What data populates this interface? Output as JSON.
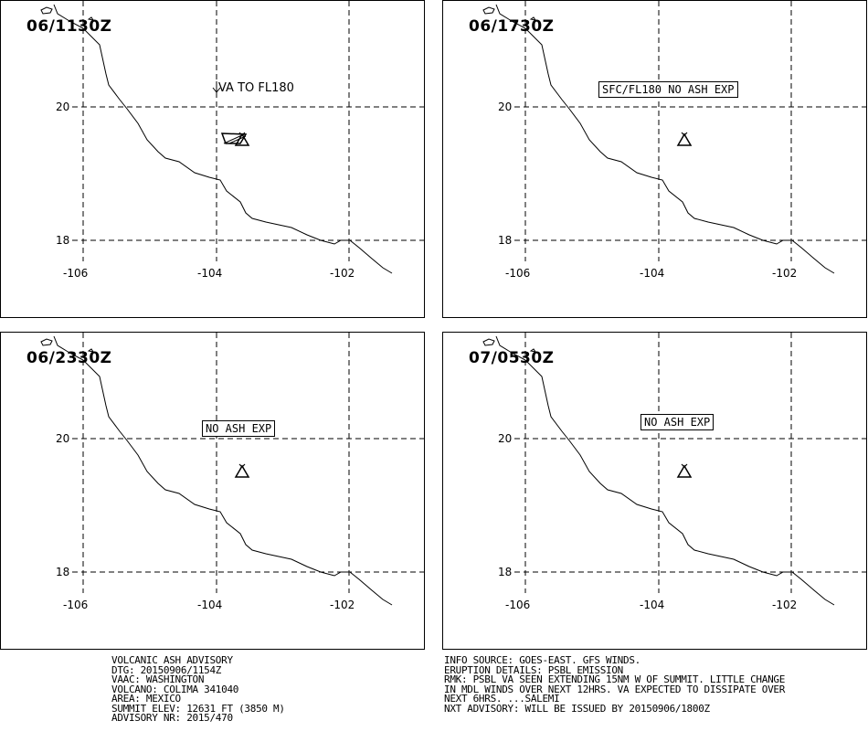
{
  "panels": [
    {
      "time": "06/1130Z",
      "label": "VA TO FL180",
      "label_style": "plain"
    },
    {
      "time": "06/1730Z",
      "label": "SFC/FL180 NO ASH EXP",
      "label_style": "boxed"
    },
    {
      "time": "06/2330Z",
      "label": "NO ASH EXP",
      "label_style": "boxed"
    },
    {
      "time": "07/0530Z",
      "label": "NO ASH EXP",
      "label_style": "boxed"
    }
  ],
  "axes": {
    "lat_labels": [
      "20",
      "18"
    ],
    "lon_labels": [
      "-106",
      "-104",
      "-102"
    ]
  },
  "advisory": {
    "left": [
      "VOLCANIC ASH ADVISORY",
      "DTG: 20150906/1154Z",
      "VAAC: WASHINGTON",
      "VOLCANO: COLIMA 341040",
      "AREA: MEXICO",
      "SUMMIT ELEV: 12631 FT (3850 M)",
      "ADVISORY NR: 2015/470"
    ],
    "right": [
      "INFO SOURCE: GOES-EAST. GFS WINDS.",
      "ERUPTION DETAILS: PSBL EMISSION",
      "RMK: PSBL VA SEEN EXTENDING 15NM W OF SUMMIT. LITTLE CHANGE",
      "IN MDL WINDS OVER NEXT 12HRS. VA EXPECTED TO DISSIPATE OVER",
      "NEXT 6HRS. ...SALEMI",
      "NXT ADVISORY: WILL BE ISSUED BY 20150906/1800Z"
    ]
  }
}
